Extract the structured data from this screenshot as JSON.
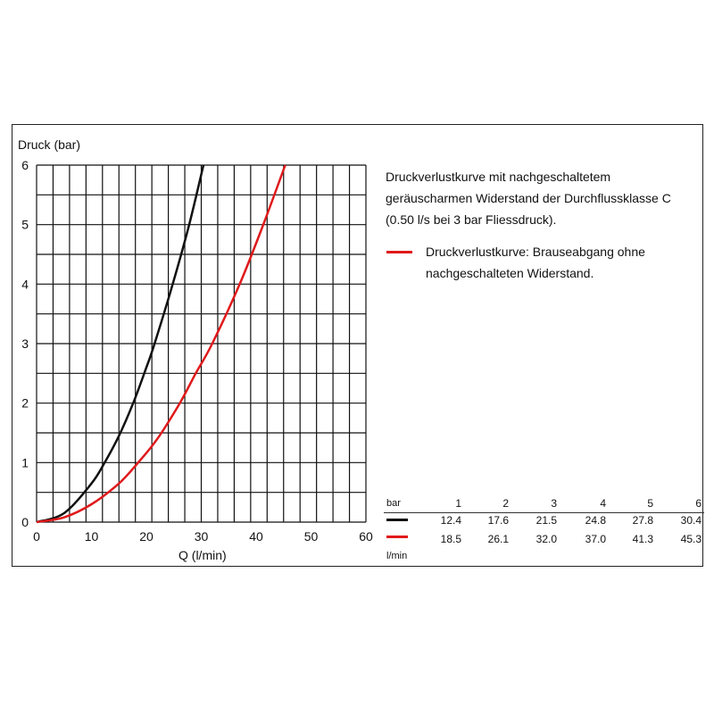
{
  "chart_data": {
    "type": "line",
    "ylabel": "Druck (bar)",
    "xlabel": "Q (l/min)",
    "xlim": [
      0,
      60
    ],
    "ylim": [
      0,
      6
    ],
    "x_ticks": [
      "0",
      "10",
      "20",
      "30",
      "40",
      "50",
      "60"
    ],
    "y_ticks": [
      "0",
      "1",
      "2",
      "3",
      "4",
      "5",
      "6"
    ],
    "grid": true,
    "series": [
      {
        "color": "#111111",
        "points": [
          [
            0,
            0
          ],
          [
            5,
            0.15
          ],
          [
            10,
            0.65
          ],
          [
            12.4,
            1
          ],
          [
            15,
            1.45
          ],
          [
            17.6,
            2
          ],
          [
            20,
            2.6
          ],
          [
            21.5,
            3
          ],
          [
            24.8,
            4
          ],
          [
            27.8,
            5
          ],
          [
            30.4,
            6
          ]
        ]
      },
      {
        "color": "#e0191b",
        "points": [
          [
            0,
            0
          ],
          [
            5,
            0.08
          ],
          [
            10,
            0.3
          ],
          [
            15,
            0.65
          ],
          [
            18.5,
            1
          ],
          [
            22,
            1.4
          ],
          [
            26.1,
            2
          ],
          [
            29,
            2.5
          ],
          [
            32,
            3
          ],
          [
            37,
            4
          ],
          [
            41.3,
            5
          ],
          [
            45.3,
            6
          ]
        ]
      }
    ]
  },
  "legend": {
    "black_text": "Druckverlustkurve mit nachgeschaltetem geräuscharmen Widerstand der Durchflussklasse C (0.50 l/s bei 3 bar Fliessdruck).",
    "red_text": "Druckverlustkurve: Brauseabgang ohne nachgeschalteten Widerstand."
  },
  "table": {
    "unit_top": "bar",
    "unit_bottom": "l/min",
    "headers": [
      "1",
      "2",
      "3",
      "4",
      "5",
      "6"
    ],
    "black_row": [
      "12.4",
      "17.6",
      "21.5",
      "24.8",
      "27.8",
      "30.4"
    ],
    "red_row": [
      "18.5",
      "26.1",
      "32.0",
      "37.0",
      "41.3",
      "45.3"
    ],
    "black_color": "#111111",
    "red_color": "#e0191b"
  }
}
